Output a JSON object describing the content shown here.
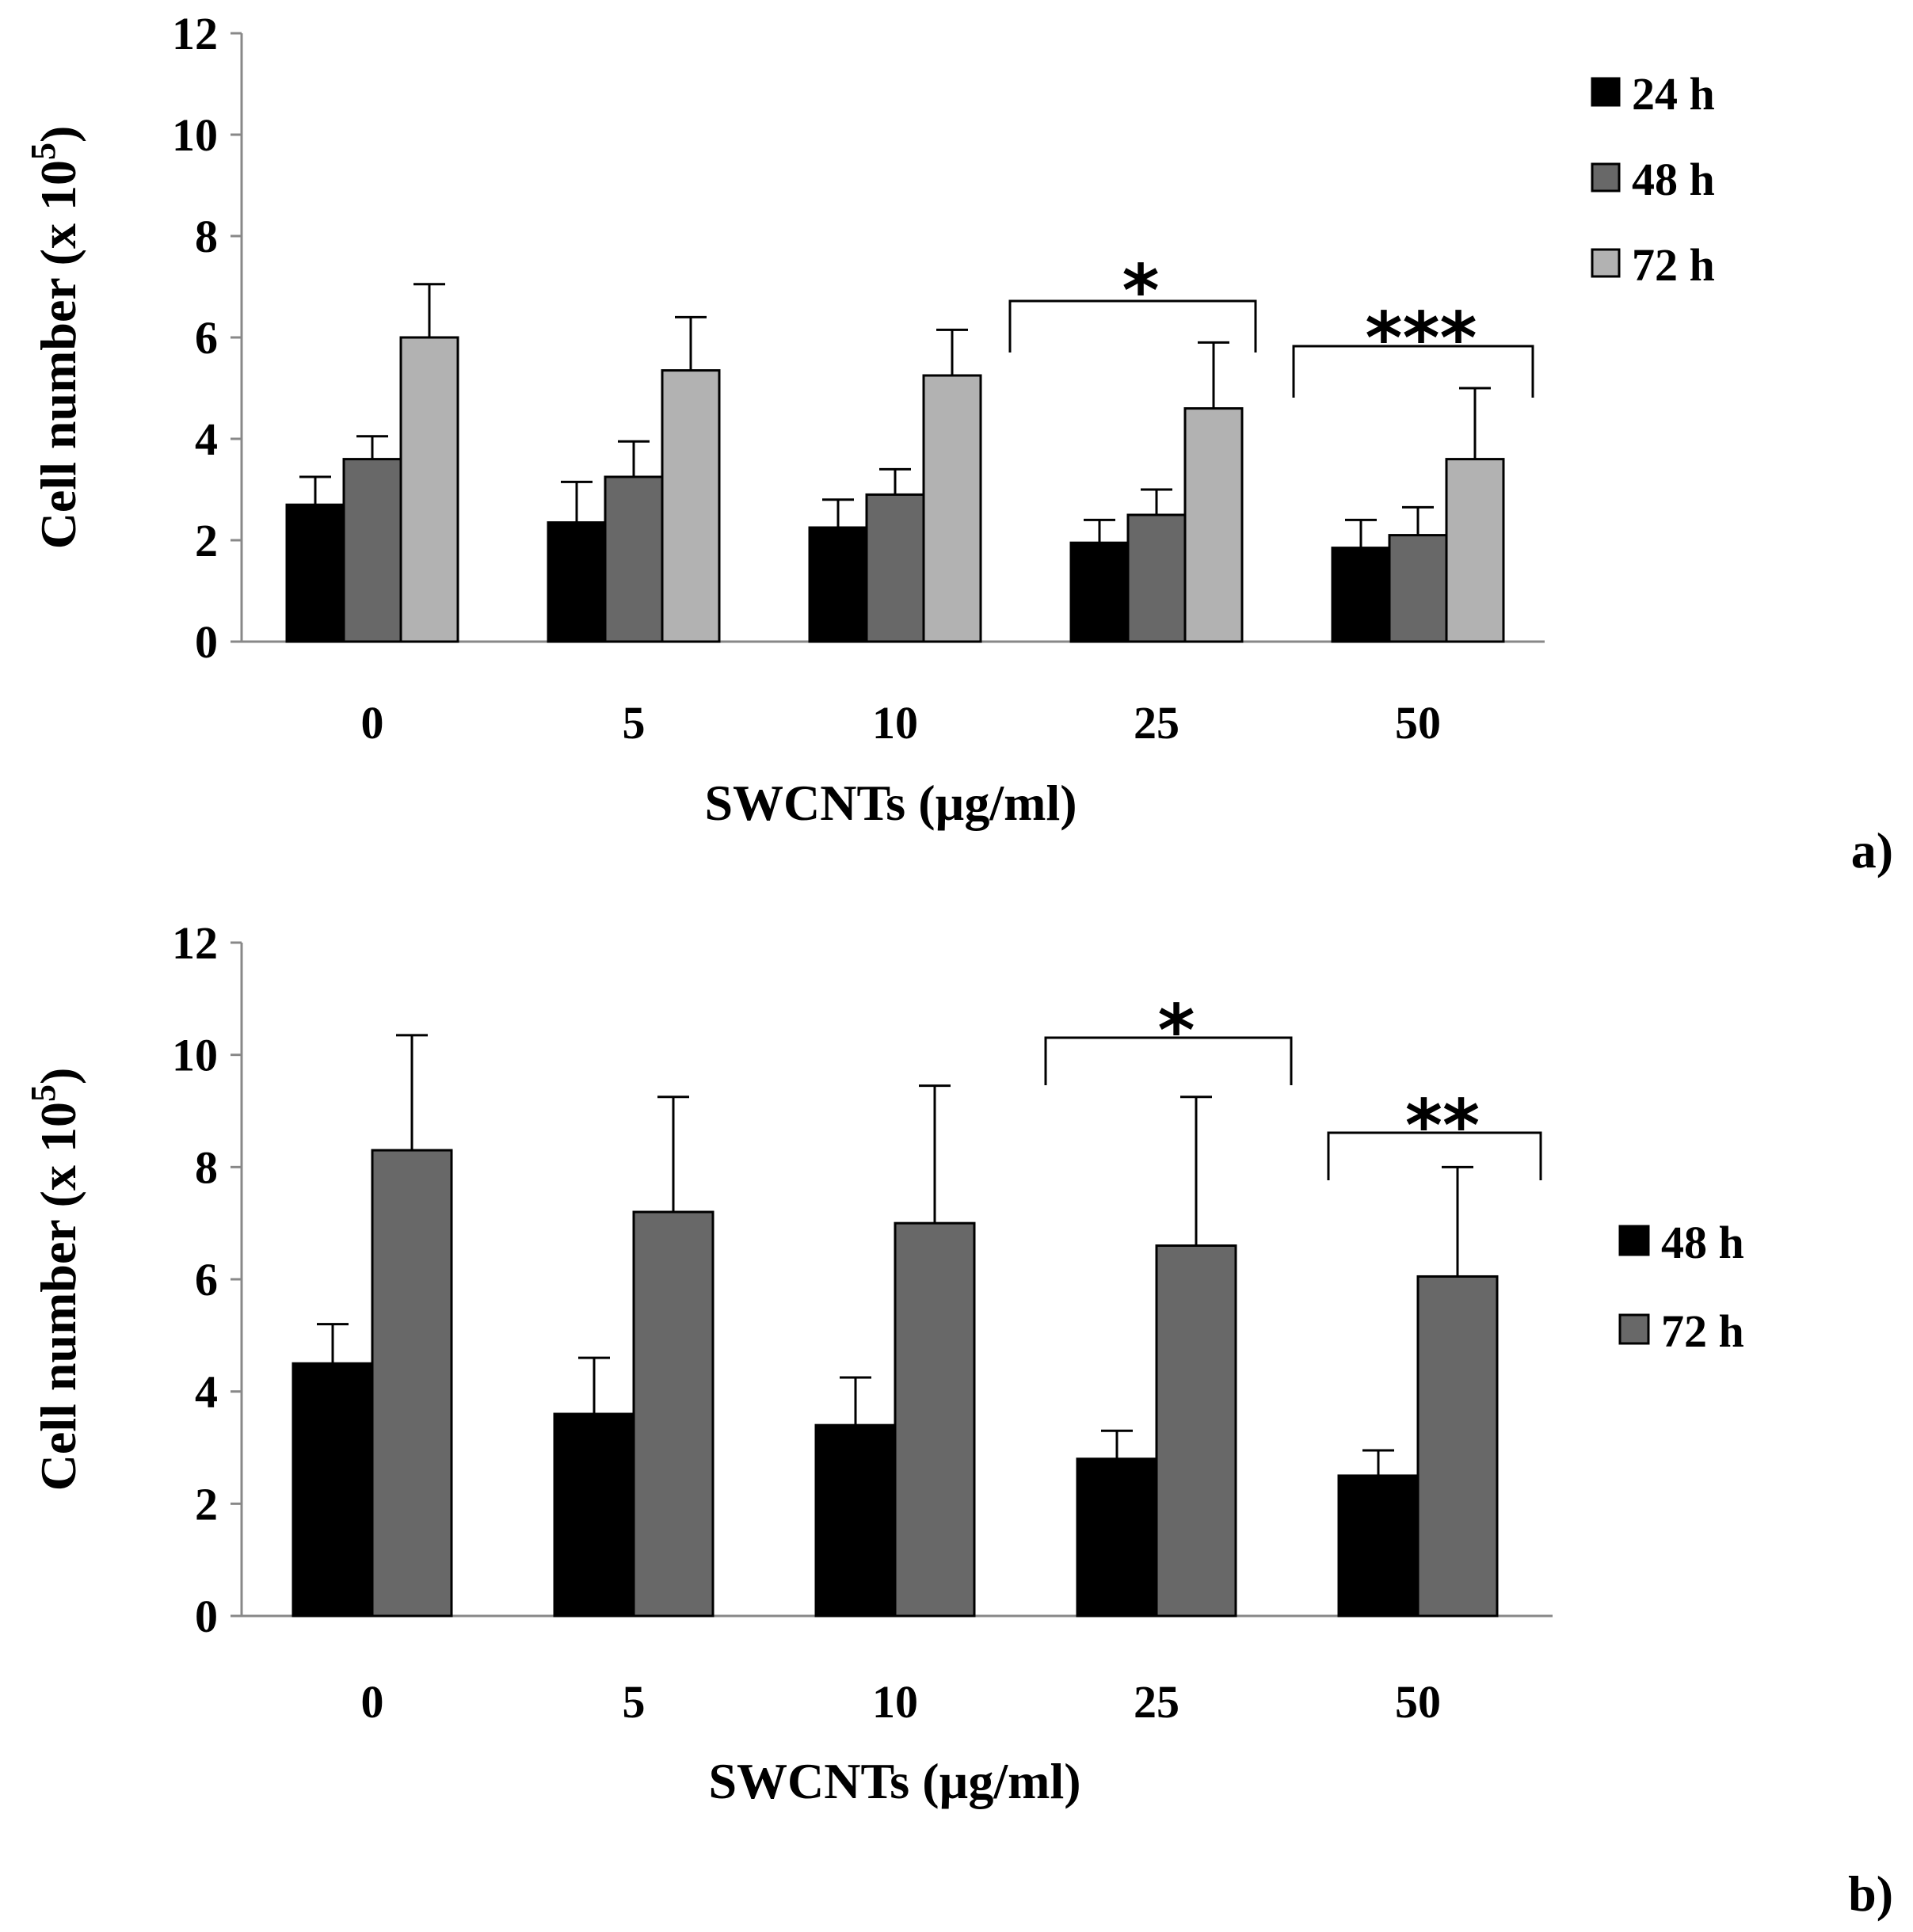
{
  "chart_data": [
    {
      "type": "bar",
      "panel_label": "a)",
      "categories": [
        "0",
        "5",
        "10",
        "25",
        "50"
      ],
      "xlabel": "SWCNTs (µg/ml)",
      "ylabel": "Cell number (x 10",
      "ylabel_exp": "5",
      "ylabel_close": ")",
      "ylim": [
        0,
        12
      ],
      "yticks": [
        "0",
        "2",
        "4",
        "6",
        "8",
        "10",
        "12"
      ],
      "grid": false,
      "legend_position": "top-right",
      "series": [
        {
          "name": "24 h",
          "color": "#000000",
          "values": [
            2.7,
            2.35,
            2.25,
            1.95,
            1.85
          ],
          "errors": [
            0.55,
            0.8,
            0.55,
            0.45,
            0.55
          ]
        },
        {
          "name": "48 h",
          "color": "#686868",
          "values": [
            3.6,
            3.25,
            2.9,
            2.5,
            2.1
          ],
          "errors": [
            0.45,
            0.7,
            0.5,
            0.5,
            0.55
          ]
        },
        {
          "name": "72 h",
          "color": "#b2b2b2",
          "values": [
            6.0,
            5.35,
            5.25,
            4.6,
            3.6
          ],
          "errors": [
            1.05,
            1.05,
            0.9,
            1.3,
            1.4
          ]
        }
      ],
      "annotations": [
        {
          "label": "*",
          "from_category": "25"
        },
        {
          "label": "***",
          "from_category": "50"
        }
      ]
    },
    {
      "type": "bar",
      "panel_label": "b)",
      "categories": [
        "0",
        "5",
        "10",
        "25",
        "50"
      ],
      "xlabel": "SWCNTs (µg/ml)",
      "ylabel": "Cell number (x 10",
      "ylabel_exp": "5",
      "ylabel_close": ")",
      "ylim": [
        0,
        12
      ],
      "yticks": [
        "0",
        "2",
        "4",
        "6",
        "8",
        "10",
        "12"
      ],
      "grid": false,
      "legend_position": "right",
      "series": [
        {
          "name": "48 h",
          "color": "#000000",
          "values": [
            4.5,
            3.6,
            3.4,
            2.8,
            2.5
          ],
          "errors": [
            0.7,
            1.0,
            0.85,
            0.5,
            0.45
          ]
        },
        {
          "name": "72 h",
          "color": "#686868",
          "values": [
            8.3,
            7.2,
            7.0,
            6.6,
            6.05
          ],
          "errors": [
            2.05,
            2.05,
            2.45,
            2.65,
            1.95
          ]
        }
      ],
      "annotations": [
        {
          "label": "*",
          "from_category": "25"
        },
        {
          "label": "**",
          "from_category": "50"
        }
      ]
    }
  ]
}
